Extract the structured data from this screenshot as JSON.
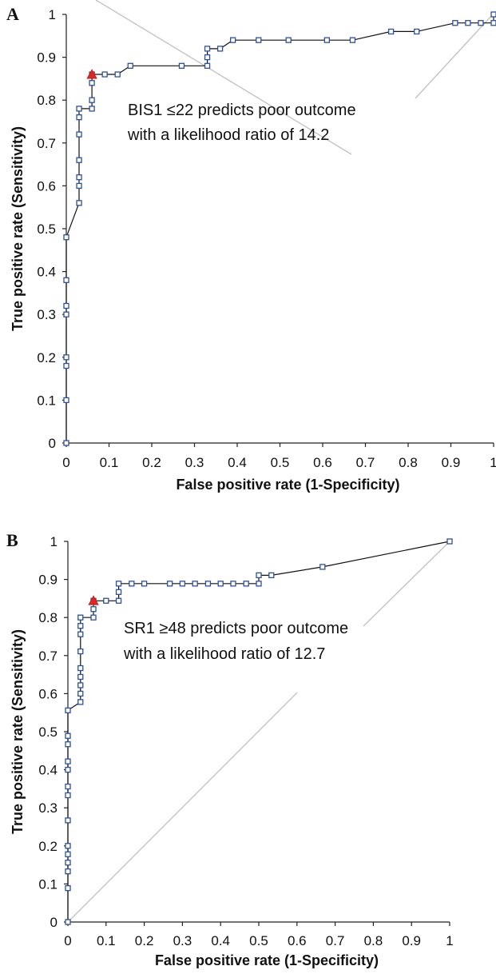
{
  "chart_data": [
    {
      "panel": "A",
      "type": "line",
      "xlabel": "False positive rate (1-Specificity)",
      "ylabel": "True positive rate (Sensitivity)",
      "xlim": [
        0,
        1
      ],
      "ylim": [
        0,
        1
      ],
      "xticks": [
        "0",
        "0.1",
        "0.2",
        "0.3",
        "0.4",
        "0.5",
        "0.6",
        "0.7",
        "0.8",
        "0.9",
        "1"
      ],
      "yticks": [
        "0",
        "0.1",
        "0.2",
        "0.3",
        "0.4",
        "0.5",
        "0.6",
        "0.7",
        "0.8",
        "0.9",
        "1"
      ],
      "annotation": [
        "BIS1 ≤22 predicts poor outcome",
        "with a likelihood ratio of 14.2"
      ],
      "reference_line": [
        [
          0,
          0
        ],
        [
          1,
          1
        ]
      ],
      "cutoff_point": {
        "x": 0.06,
        "y": 0.86
      },
      "series": [
        {
          "points": [
            [
              0,
              0
            ],
            [
              0,
              0.1
            ],
            [
              0,
              0.18
            ],
            [
              0,
              0.2
            ],
            [
              0,
              0.3
            ],
            [
              0,
              0.32
            ],
            [
              0,
              0.38
            ],
            [
              0,
              0.48
            ],
            [
              0.03,
              0.56
            ],
            [
              0.03,
              0.6
            ],
            [
              0.03,
              0.62
            ],
            [
              0.03,
              0.66
            ],
            [
              0.03,
              0.72
            ],
            [
              0.03,
              0.76
            ],
            [
              0.03,
              0.78
            ],
            [
              0.06,
              0.78
            ],
            [
              0.06,
              0.8
            ],
            [
              0.06,
              0.84
            ],
            [
              0.06,
              0.86
            ],
            [
              0.09,
              0.86
            ],
            [
              0.12,
              0.86
            ],
            [
              0.15,
              0.88
            ],
            [
              0.27,
              0.88
            ],
            [
              0.33,
              0.88
            ],
            [
              0.33,
              0.9
            ],
            [
              0.33,
              0.92
            ],
            [
              0.36,
              0.92
            ],
            [
              0.39,
              0.94
            ],
            [
              0.45,
              0.94
            ],
            [
              0.52,
              0.94
            ],
            [
              0.61,
              0.94
            ],
            [
              0.67,
              0.94
            ],
            [
              0.76,
              0.96
            ],
            [
              0.82,
              0.96
            ],
            [
              0.91,
              0.98
            ],
            [
              0.94,
              0.98
            ],
            [
              0.97,
              0.98
            ],
            [
              1.0,
              0.98
            ],
            [
              1.0,
              1.0
            ]
          ]
        }
      ]
    },
    {
      "panel": "B",
      "type": "line",
      "xlabel": "False positive rate (1-Specificity)",
      "ylabel": "True positive rate (Sensitivity)",
      "xlim": [
        0,
        1
      ],
      "ylim": [
        0,
        1
      ],
      "xticks": [
        "0",
        "0.1",
        "0.2",
        "0.3",
        "0.4",
        "0.5",
        "0.6",
        "0.7",
        "0.8",
        "0.9",
        "1"
      ],
      "yticks": [
        "0",
        "0.1",
        "0.2",
        "0.3",
        "0.4",
        "0.5",
        "0.6",
        "0.7",
        "0.8",
        "0.9",
        "1"
      ],
      "annotation": [
        "SR1 ≥48 predicts poor outcome",
        "with a likelihood ratio of 12.7"
      ],
      "reference_line": [
        [
          0,
          0
        ],
        [
          1,
          1
        ]
      ],
      "cutoff_point": {
        "x": 0.067,
        "y": 0.844
      },
      "series": [
        {
          "points": [
            [
              0,
              0
            ],
            [
              0,
              0.089
            ],
            [
              0,
              0.133
            ],
            [
              0,
              0.156
            ],
            [
              0,
              0.178
            ],
            [
              0,
              0.2
            ],
            [
              0,
              0.267
            ],
            [
              0,
              0.333
            ],
            [
              0,
              0.356
            ],
            [
              0,
              0.4
            ],
            [
              0,
              0.422
            ],
            [
              0,
              0.467
            ],
            [
              0,
              0.489
            ],
            [
              0,
              0.556
            ],
            [
              0.033,
              0.578
            ],
            [
              0.033,
              0.6
            ],
            [
              0.033,
              0.622
            ],
            [
              0.033,
              0.644
            ],
            [
              0.033,
              0.667
            ],
            [
              0.033,
              0.711
            ],
            [
              0.033,
              0.756
            ],
            [
              0.033,
              0.778
            ],
            [
              0.033,
              0.8
            ],
            [
              0.067,
              0.8
            ],
            [
              0.067,
              0.822
            ],
            [
              0.067,
              0.844
            ],
            [
              0.1,
              0.844
            ],
            [
              0.133,
              0.844
            ],
            [
              0.133,
              0.867
            ],
            [
              0.133,
              0.889
            ],
            [
              0.167,
              0.889
            ],
            [
              0.2,
              0.889
            ],
            [
              0.267,
              0.889
            ],
            [
              0.3,
              0.889
            ],
            [
              0.333,
              0.889
            ],
            [
              0.367,
              0.889
            ],
            [
              0.4,
              0.889
            ],
            [
              0.433,
              0.889
            ],
            [
              0.467,
              0.889
            ],
            [
              0.5,
              0.889
            ],
            [
              0.5,
              0.911
            ],
            [
              0.533,
              0.911
            ],
            [
              0.667,
              0.933
            ],
            [
              1.0,
              1.0
            ]
          ]
        }
      ]
    }
  ]
}
